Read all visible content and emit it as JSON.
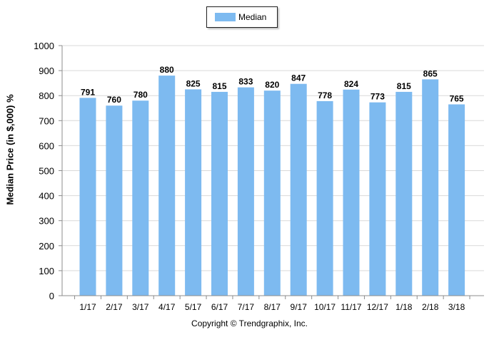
{
  "legend": {
    "label": "Median",
    "color": "#7dbaf0"
  },
  "footer": {
    "text": "Copyright © Trendgraphix, Inc."
  },
  "chart_data": {
    "type": "bar",
    "ylabel": "Median Price (in $,000) %",
    "categories": [
      "1/17",
      "2/17",
      "3/17",
      "4/17",
      "5/17",
      "6/17",
      "7/17",
      "8/17",
      "9/17",
      "10/17",
      "11/17",
      "12/17",
      "1/18",
      "2/18",
      "3/18"
    ],
    "series": [
      {
        "name": "Median",
        "color": "#7dbaf0",
        "values": [
          791,
          760,
          780,
          880,
          825,
          815,
          833,
          820,
          847,
          778,
          824,
          773,
          815,
          865,
          765
        ]
      }
    ],
    "ylim": [
      0,
      1000
    ],
    "yticks": [
      0,
      100,
      200,
      300,
      400,
      500,
      600,
      700,
      800,
      900,
      1000
    ],
    "grid": true,
    "legend_position": "top-center",
    "data_labels": true
  }
}
